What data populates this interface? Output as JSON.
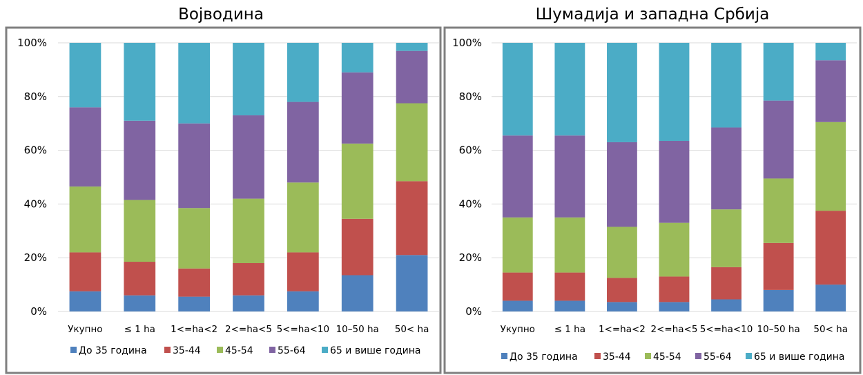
{
  "colors": {
    "s1": "#4f81bd",
    "s2": "#c0504d",
    "s3": "#9bbb59",
    "s4": "#8064a2",
    "s5": "#4bacc6"
  },
  "chart_data": [
    {
      "type": "bar",
      "stacked": true,
      "title": "Војводина",
      "categories": [
        "Укупно",
        "≤ 1 ha",
        "1<=ha<2",
        "2<=ha<5",
        "5<=ha<10",
        "10–50 ha",
        "50< ha"
      ],
      "y_ticks": [
        "0%",
        "20%",
        "40%",
        "60%",
        "80%",
        "100%"
      ],
      "ylim": [
        0,
        100
      ],
      "legend_position": "bottom",
      "series": [
        {
          "name": "До 35 година",
          "values": [
            7.5,
            6,
            5.5,
            6,
            7.5,
            13.5,
            21
          ]
        },
        {
          "name": "35-44",
          "values": [
            14.5,
            12.5,
            10.5,
            12,
            14.5,
            21,
            27.5
          ]
        },
        {
          "name": "45-54",
          "values": [
            24.5,
            23,
            22.5,
            24,
            26,
            28,
            29
          ]
        },
        {
          "name": "55-64",
          "values": [
            29.5,
            29.5,
            31.5,
            31,
            30,
            26.5,
            19.5
          ]
        },
        {
          "name": "65 и више година",
          "values": [
            24,
            29,
            30,
            27,
            22,
            11,
            3
          ]
        }
      ]
    },
    {
      "type": "bar",
      "stacked": true,
      "title": "Шумадија и западна Србија",
      "categories": [
        "Укупно",
        "≤ 1 ha",
        "1<=ha<2",
        "2<=ha<5",
        "5<=ha<10",
        "10–50 ha",
        "50< ha"
      ],
      "y_ticks": [
        "0%",
        "20%",
        "40%",
        "60%",
        "80%",
        "100%"
      ],
      "ylim": [
        0,
        100
      ],
      "legend_position": "bottom",
      "series": [
        {
          "name": "До 35 година",
          "values": [
            4,
            4,
            3.5,
            3.5,
            4.5,
            8,
            10
          ]
        },
        {
          "name": "35-44",
          "values": [
            10.5,
            10.5,
            9,
            9.5,
            12,
            17.5,
            27.5
          ]
        },
        {
          "name": "45-54",
          "values": [
            20.5,
            20.5,
            19,
            20,
            21.5,
            24,
            33
          ]
        },
        {
          "name": "55-64",
          "values": [
            30.5,
            30.5,
            31.5,
            30.5,
            30.5,
            29,
            23
          ]
        },
        {
          "name": "65 и више година",
          "values": [
            34.5,
            34.5,
            37,
            36.5,
            31.5,
            21.5,
            6.5
          ]
        }
      ]
    }
  ]
}
